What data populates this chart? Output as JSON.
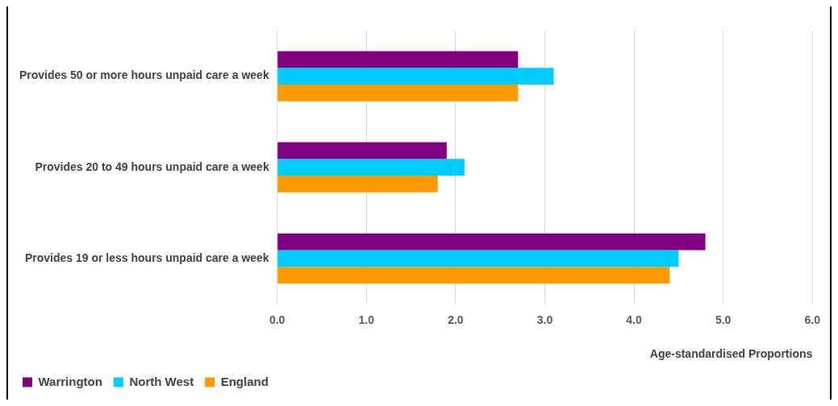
{
  "chart_data": {
    "type": "bar",
    "orientation": "horizontal",
    "xlabel": "Age-standardised Proportions",
    "categories": [
      "Provides 50 or more hours unpaid care a week",
      "Provides 20 to 49 hours unpaid care a week",
      "Provides 19 or less hours unpaid care a week"
    ],
    "series": [
      {
        "name": "Warrington",
        "color": "#800080",
        "values": [
          2.7,
          1.9,
          4.8
        ]
      },
      {
        "name": "North West",
        "color": "#00ccff",
        "values": [
          3.1,
          2.1,
          4.5
        ]
      },
      {
        "name": "England",
        "color": "#ff9900",
        "values": [
          2.7,
          1.8,
          4.4
        ]
      }
    ],
    "xlim": [
      0,
      6
    ],
    "xticks": [
      {
        "value": 0,
        "label": "0.0"
      },
      {
        "value": 1,
        "label": "1.0"
      },
      {
        "value": 2,
        "label": "2.0"
      },
      {
        "value": 3,
        "label": "3.0"
      },
      {
        "value": 4,
        "label": "4.0"
      },
      {
        "value": 5,
        "label": "5.0"
      },
      {
        "value": 6,
        "label": "6.0"
      }
    ],
    "grid": "x",
    "legend": "bottom left"
  }
}
